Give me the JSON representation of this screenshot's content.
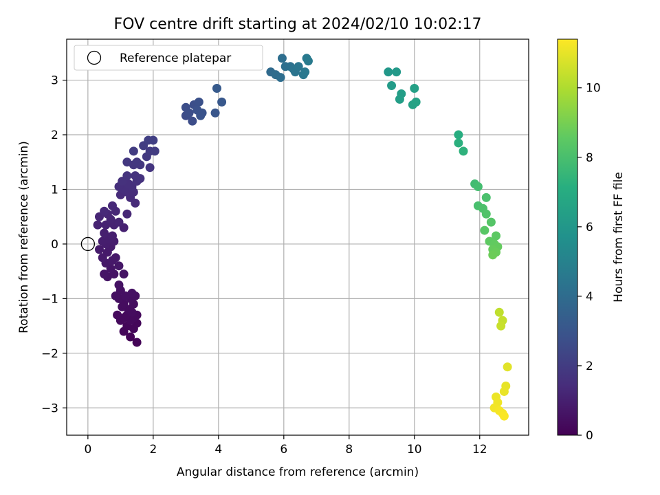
{
  "chart_data": {
    "type": "scatter",
    "title": "FOV centre drift starting at 2024/02/10 10:02:17",
    "xlabel": "Angular distance from reference (arcmin)",
    "ylabel": "Rotation from reference (arcmin)",
    "xlim": [
      -0.65,
      13.5
    ],
    "ylim": [
      -3.5,
      3.75
    ],
    "xticks": [
      0,
      2,
      4,
      6,
      8,
      10,
      12
    ],
    "yticks": [
      -3,
      -2,
      -1,
      0,
      1,
      2,
      3
    ],
    "grid": true,
    "legend": {
      "position": "top-left",
      "entries": [
        "Reference platepar"
      ]
    },
    "reference_point": {
      "x": 0,
      "y": 0,
      "label": "Reference platepar"
    },
    "colorbar": {
      "label": "Hours from first FF file",
      "colormap": "viridis",
      "range": [
        0,
        11.4
      ],
      "ticks": [
        0,
        2,
        4,
        6,
        8,
        10
      ]
    },
    "series": [
      {
        "points": [
          [
            1.5,
            -1.8
          ],
          [
            1.3,
            -1.7
          ],
          [
            1.1,
            -1.6
          ],
          [
            1.4,
            -1.55
          ],
          [
            1.2,
            -1.5
          ],
          [
            1.5,
            -1.45
          ],
          [
            1.0,
            -1.4
          ],
          [
            1.3,
            -1.4
          ],
          [
            1.4,
            -1.35
          ],
          [
            1.1,
            -1.35
          ],
          [
            0.9,
            -1.3
          ],
          [
            1.2,
            -1.3
          ],
          [
            1.5,
            -1.3
          ],
          [
            1.35,
            -1.25
          ],
          [
            1.25,
            -1.2
          ],
          [
            1.05,
            -1.15
          ],
          [
            1.4,
            -1.1
          ],
          [
            1.1,
            -1.1
          ],
          [
            0.95,
            -1.0
          ],
          [
            1.3,
            -1.0
          ],
          [
            1.45,
            -0.95
          ],
          [
            0.85,
            -0.95
          ],
          [
            1.15,
            -0.95
          ],
          [
            1.35,
            -0.9
          ],
          [
            1.0,
            -0.85
          ],
          [
            0.95,
            -0.75
          ],
          [
            1.1,
            -0.55
          ],
          [
            0.6,
            -0.6
          ],
          [
            0.8,
            -0.55
          ],
          [
            0.5,
            -0.55
          ],
          [
            0.7,
            -0.45
          ],
          [
            0.95,
            -0.4
          ],
          [
            0.55,
            -0.35
          ],
          [
            0.75,
            -0.3
          ],
          [
            0.85,
            -0.25
          ],
          [
            0.45,
            -0.25
          ],
          [
            0.6,
            -0.15
          ],
          [
            0.35,
            -0.1
          ],
          [
            0.7,
            -0.05
          ],
          [
            0.55,
            0.0
          ],
          [
            0.8,
            0.05
          ],
          [
            0.45,
            0.05
          ],
          [
            0.65,
            0.1
          ]
        ],
        "hours": [
          0.1,
          0.1,
          0.2,
          0.2,
          0.2,
          0.2,
          0.3,
          0.3,
          0.3,
          0.3,
          0.3,
          0.3,
          0.3,
          0.35,
          0.35,
          0.4,
          0.4,
          0.4,
          0.45,
          0.45,
          0.45,
          0.5,
          0.5,
          0.5,
          0.5,
          0.55,
          0.6,
          0.6,
          0.6,
          0.65,
          0.65,
          0.7,
          0.7,
          0.75,
          0.75,
          0.8,
          0.8,
          0.85,
          0.85,
          0.9,
          0.9,
          0.95,
          0.95
        ]
      },
      {
        "points": [
          [
            0.75,
            0.15
          ],
          [
            0.5,
            0.2
          ],
          [
            1.1,
            0.3
          ],
          [
            0.8,
            0.35
          ],
          [
            0.55,
            0.35
          ],
          [
            0.3,
            0.35
          ],
          [
            0.95,
            0.4
          ],
          [
            0.7,
            0.45
          ],
          [
            0.35,
            0.5
          ],
          [
            0.6,
            0.55
          ],
          [
            1.2,
            0.55
          ],
          [
            0.85,
            0.6
          ],
          [
            0.5,
            0.6
          ],
          [
            0.75,
            0.7
          ],
          [
            1.45,
            0.75
          ],
          [
            1.3,
            0.85
          ],
          [
            1.0,
            0.9
          ],
          [
            1.2,
            0.95
          ],
          [
            1.4,
            0.95
          ],
          [
            1.1,
            1.0
          ],
          [
            0.95,
            1.05
          ],
          [
            1.35,
            1.05
          ],
          [
            1.25,
            1.1
          ],
          [
            1.05,
            1.15
          ],
          [
            1.5,
            1.15
          ],
          [
            1.6,
            1.2
          ],
          [
            1.45,
            1.25
          ],
          [
            1.2,
            1.25
          ],
          [
            1.9,
            1.4
          ],
          [
            1.6,
            1.45
          ],
          [
            1.4,
            1.45
          ],
          [
            1.2,
            1.5
          ],
          [
            1.5,
            1.5
          ],
          [
            1.8,
            1.6
          ],
          [
            1.9,
            1.7
          ],
          [
            2.05,
            1.7
          ],
          [
            1.4,
            1.7
          ],
          [
            1.7,
            1.8
          ],
          [
            1.85,
            1.9
          ],
          [
            2.0,
            1.9
          ]
        ],
        "hours": [
          1.0,
          1.0,
          1.05,
          1.1,
          1.1,
          1.1,
          1.15,
          1.15,
          1.2,
          1.2,
          1.25,
          1.25,
          1.3,
          1.3,
          1.35,
          1.4,
          1.4,
          1.45,
          1.45,
          1.5,
          1.5,
          1.55,
          1.55,
          1.6,
          1.6,
          1.65,
          1.65,
          1.7,
          1.75,
          1.8,
          1.8,
          1.85,
          1.85,
          1.9,
          1.95,
          2.0,
          2.0,
          2.05,
          2.1,
          2.1
        ]
      },
      {
        "points": [
          [
            3.0,
            2.35
          ],
          [
            3.2,
            2.25
          ],
          [
            3.1,
            2.4
          ],
          [
            3.0,
            2.5
          ],
          [
            3.25,
            2.55
          ],
          [
            3.4,
            2.6
          ],
          [
            3.35,
            2.45
          ],
          [
            3.5,
            2.4
          ],
          [
            3.45,
            2.35
          ],
          [
            3.9,
            2.4
          ],
          [
            4.1,
            2.6
          ],
          [
            3.95,
            2.85
          ]
        ],
        "hours": [
          2.6,
          2.65,
          2.7,
          2.7,
          2.75,
          2.8,
          2.85,
          2.9,
          2.9,
          3.05,
          3.1,
          3.2
        ]
      },
      {
        "points": [
          [
            5.6,
            3.15
          ],
          [
            5.75,
            3.1
          ],
          [
            5.9,
            3.05
          ],
          [
            5.95,
            3.4
          ],
          [
            6.05,
            3.25
          ],
          [
            6.2,
            3.25
          ],
          [
            6.3,
            3.2
          ],
          [
            6.35,
            3.15
          ],
          [
            6.45,
            3.25
          ],
          [
            6.6,
            3.1
          ],
          [
            6.65,
            3.15
          ],
          [
            6.7,
            3.4
          ],
          [
            6.75,
            3.35
          ]
        ],
        "hours": [
          3.9,
          4.0,
          4.05,
          4.1,
          4.15,
          4.2,
          4.3,
          4.35,
          4.4,
          4.5,
          4.55,
          4.6,
          4.65
        ]
      },
      {
        "points": [
          [
            9.2,
            3.15
          ],
          [
            9.45,
            3.15
          ],
          [
            9.3,
            2.9
          ],
          [
            9.6,
            2.75
          ],
          [
            9.55,
            2.65
          ],
          [
            10.0,
            2.85
          ],
          [
            9.95,
            2.55
          ],
          [
            10.05,
            2.6
          ]
        ],
        "hours": [
          6.0,
          6.1,
          6.2,
          6.3,
          6.35,
          6.45,
          6.5,
          6.55
        ]
      },
      {
        "points": [
          [
            11.35,
            2.0
          ],
          [
            11.35,
            1.85
          ],
          [
            11.5,
            1.7
          ],
          [
            11.85,
            1.1
          ],
          [
            11.95,
            1.05
          ],
          [
            11.95,
            0.7
          ],
          [
            12.2,
            0.85
          ],
          [
            12.1,
            0.65
          ],
          [
            12.2,
            0.55
          ],
          [
            12.35,
            0.4
          ],
          [
            12.15,
            0.25
          ],
          [
            12.5,
            0.15
          ],
          [
            12.3,
            0.05
          ],
          [
            12.45,
            0.0
          ],
          [
            12.55,
            -0.05
          ],
          [
            12.4,
            -0.1
          ],
          [
            12.5,
            -0.15
          ],
          [
            12.4,
            -0.2
          ]
        ],
        "hours": [
          7.1,
          7.2,
          7.3,
          7.8,
          7.9,
          8.0,
          8.05,
          8.1,
          8.2,
          8.3,
          8.4,
          8.5,
          8.55,
          8.6,
          8.65,
          8.7,
          8.75,
          8.8
        ]
      },
      {
        "points": [
          [
            12.6,
            -1.25
          ],
          [
            12.7,
            -1.4
          ],
          [
            12.65,
            -1.5
          ],
          [
            12.85,
            -2.25
          ],
          [
            12.8,
            -2.6
          ],
          [
            12.75,
            -2.7
          ],
          [
            12.5,
            -2.8
          ],
          [
            12.55,
            -2.9
          ],
          [
            12.45,
            -3.0
          ],
          [
            12.6,
            -3.05
          ],
          [
            12.7,
            -3.1
          ],
          [
            12.75,
            -3.15
          ]
        ],
        "hours": [
          10.3,
          10.4,
          10.45,
          10.9,
          11.0,
          11.05,
          11.1,
          11.15,
          11.2,
          11.25,
          11.3,
          11.35
        ]
      }
    ]
  }
}
